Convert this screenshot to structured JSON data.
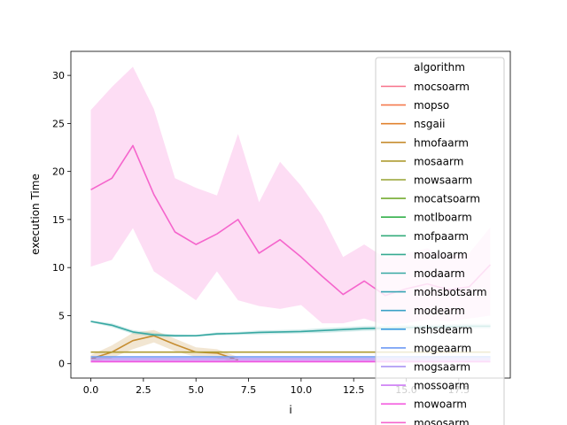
{
  "chart_data": {
    "type": "line",
    "title": "",
    "xlabel": "i",
    "ylabel": "execution Time",
    "xlim": [
      -0.95,
      19.95
    ],
    "ylim": [
      -1.5,
      32.5
    ],
    "x_ticks": [
      0.0,
      2.5,
      5.0,
      7.5,
      10.0,
      12.5,
      15.0,
      17.5
    ],
    "x_tick_labels": [
      "0.0",
      "2.5",
      "5.0",
      "7.5",
      "10.0",
      "12.5",
      "15.0",
      "17.5"
    ],
    "y_ticks": [
      0,
      5,
      10,
      15,
      20,
      25,
      30
    ],
    "y_tick_labels": [
      "0",
      "5",
      "10",
      "15",
      "20",
      "25",
      "30"
    ],
    "grid": false,
    "legend_title": "algorithm",
    "legend_position": "top-right",
    "x": [
      0,
      1,
      2,
      3,
      4,
      5,
      6,
      7,
      8,
      9,
      10,
      11,
      12,
      13,
      14,
      15,
      16,
      17,
      18,
      19
    ],
    "series": [
      {
        "name": "mocsoarm",
        "color": "#f77189",
        "values": [
          null,
          null,
          null,
          null,
          null,
          null,
          null,
          null,
          null,
          null,
          null,
          null,
          null,
          null,
          null,
          null,
          null,
          null,
          null,
          null
        ]
      },
      {
        "name": "mopso",
        "color": "#f57a4e",
        "values": [
          null,
          null,
          null,
          null,
          null,
          null,
          null,
          null,
          null,
          null,
          null,
          null,
          null,
          null,
          null,
          null,
          null,
          null,
          null,
          null
        ]
      },
      {
        "name": "nsgaii",
        "color": "#e1822f",
        "values": [
          null,
          null,
          null,
          null,
          null,
          null,
          null,
          null,
          null,
          null,
          null,
          null,
          null,
          null,
          null,
          null,
          null,
          null,
          null,
          null
        ]
      },
      {
        "name": "hmofaarm",
        "color": "#c68d31",
        "values": [
          0.5,
          1.2,
          2.4,
          2.9,
          2.0,
          1.2,
          1.1,
          0.4,
          null,
          null,
          null,
          null,
          null,
          null,
          null,
          null,
          null,
          null,
          null,
          null
        ],
        "band_low": [
          0.2,
          0.6,
          1.5,
          2.2,
          1.3,
          0.7,
          0.6,
          0.1,
          null,
          null,
          null,
          null,
          null,
          null,
          null,
          null,
          null,
          null,
          null,
          null
        ],
        "band_high": [
          0.9,
          1.9,
          3.2,
          3.5,
          2.6,
          1.7,
          1.5,
          0.7,
          null,
          null,
          null,
          null,
          null,
          null,
          null,
          null,
          null,
          null,
          null,
          null
        ]
      },
      {
        "name": "mosaarm",
        "color": "#ae9b31",
        "values": [
          1.2,
          1.2,
          1.2,
          1.2,
          1.2,
          1.2,
          1.2,
          1.2,
          1.2,
          1.2,
          1.2,
          1.2,
          1.2,
          1.2,
          1.2,
          1.2,
          1.2,
          1.2,
          1.2,
          1.2
        ]
      },
      {
        "name": "mowsaarm",
        "color": "#96a331",
        "values": [
          null,
          null,
          null,
          null,
          null,
          null,
          null,
          null,
          null,
          null,
          null,
          null,
          null,
          null,
          null,
          null,
          null,
          null,
          null,
          null
        ]
      },
      {
        "name": "mocatsoarm",
        "color": "#74ac31",
        "values": [
          null,
          null,
          null,
          null,
          null,
          null,
          null,
          null,
          null,
          null,
          null,
          null,
          null,
          null,
          null,
          null,
          null,
          null,
          null,
          null
        ]
      },
      {
        "name": "motlboarm",
        "color": "#33b04a",
        "values": [
          null,
          null,
          null,
          null,
          null,
          null,
          null,
          null,
          null,
          null,
          null,
          null,
          null,
          null,
          null,
          null,
          null,
          null,
          null,
          null
        ]
      },
      {
        "name": "mofpaarm",
        "color": "#35ad7c",
        "values": [
          null,
          null,
          null,
          null,
          null,
          null,
          null,
          null,
          null,
          null,
          null,
          null,
          null,
          null,
          null,
          null,
          null,
          null,
          null,
          null
        ]
      },
      {
        "name": "moaloarm",
        "color": "#36aa91",
        "values": [
          null,
          null,
          null,
          null,
          null,
          null,
          null,
          null,
          null,
          null,
          null,
          null,
          null,
          null,
          null,
          null,
          null,
          null,
          null,
          null
        ]
      },
      {
        "name": "modaarm",
        "color": "#37a8a2",
        "values": [
          4.4,
          4.0,
          3.3,
          3.0,
          2.9,
          2.9,
          3.1,
          3.15,
          3.25,
          3.3,
          3.35,
          3.45,
          3.55,
          3.65,
          3.7,
          3.75,
          3.8,
          3.85,
          3.9,
          3.9
        ],
        "band_low": [
          4.3,
          3.8,
          3.1,
          2.8,
          2.75,
          2.8,
          2.95,
          3.0,
          3.05,
          3.1,
          3.15,
          3.2,
          3.3,
          3.4,
          3.45,
          3.5,
          3.55,
          3.6,
          3.65,
          3.65
        ],
        "band_high": [
          4.5,
          4.2,
          3.5,
          3.2,
          3.05,
          3.0,
          3.25,
          3.3,
          3.45,
          3.5,
          3.55,
          3.7,
          3.8,
          3.9,
          3.95,
          4.0,
          4.05,
          4.1,
          4.15,
          4.15
        ]
      },
      {
        "name": "mohsbotsarm",
        "color": "#38a5b4",
        "values": [
          null,
          null,
          null,
          null,
          null,
          null,
          null,
          null,
          null,
          null,
          null,
          null,
          null,
          null,
          null,
          null,
          null,
          null,
          null,
          null
        ]
      },
      {
        "name": "modearm",
        "color": "#39a1c6",
        "values": [
          null,
          null,
          null,
          null,
          null,
          null,
          null,
          null,
          null,
          null,
          null,
          null,
          null,
          null,
          null,
          null,
          null,
          null,
          null,
          null
        ]
      },
      {
        "name": "nshsdearm",
        "color": "#3b9de0",
        "values": [
          null,
          null,
          null,
          null,
          null,
          null,
          null,
          null,
          null,
          null,
          null,
          null,
          null,
          null,
          null,
          null,
          null,
          null,
          null,
          null
        ]
      },
      {
        "name": "mogeaarm",
        "color": "#6e9af4",
        "values": [
          0.7,
          0.7,
          0.7,
          0.7,
          0.7,
          0.7,
          0.7,
          0.7,
          0.7,
          0.7,
          0.7,
          0.7,
          0.7,
          0.7,
          0.7,
          0.7,
          0.7,
          0.7,
          0.7,
          0.7
        ]
      },
      {
        "name": "mogsaarm",
        "color": "#a48cf4",
        "values": [
          0.5,
          0.5,
          0.5,
          0.5,
          0.5,
          0.5,
          0.5,
          0.5,
          0.5,
          0.5,
          0.5,
          0.5,
          0.5,
          0.5,
          0.5,
          0.5,
          0.5,
          0.5,
          0.5,
          0.5
        ]
      },
      {
        "name": "mossoarm",
        "color": "#cc7af4",
        "values": [
          0.3,
          0.3,
          0.3,
          0.3,
          0.3,
          0.3,
          0.3,
          0.3,
          0.3,
          0.3,
          0.3,
          0.3,
          0.3,
          0.3,
          0.3,
          0.3,
          0.3,
          0.3,
          0.3,
          0.3
        ]
      },
      {
        "name": "mowoarm",
        "color": "#f45fe0",
        "values": [
          0.2,
          0.2,
          0.2,
          0.2,
          0.2,
          0.2,
          0.2,
          0.2,
          0.2,
          0.2,
          0.2,
          0.2,
          0.2,
          0.2,
          0.2,
          0.2,
          0.2,
          0.2,
          0.2,
          0.2
        ]
      },
      {
        "name": "mososarm",
        "color": "#f565cc",
        "values": [
          18.1,
          19.3,
          22.7,
          17.6,
          13.7,
          12.4,
          13.5,
          15.0,
          11.5,
          12.9,
          11.1,
          9.1,
          7.2,
          8.6,
          7.1,
          7.8,
          8.3,
          7.7,
          8.0,
          10.3
        ],
        "band_low": [
          10.1,
          10.8,
          14.1,
          9.6,
          8.1,
          6.6,
          9.6,
          6.6,
          6.0,
          5.7,
          6.1,
          4.2,
          4.2,
          4.7,
          4.0,
          4.2,
          4.6,
          4.4,
          4.7,
          5.0
        ],
        "band_high": [
          26.4,
          28.8,
          30.9,
          26.5,
          19.3,
          18.3,
          17.5,
          23.9,
          16.8,
          21.0,
          18.5,
          15.4,
          11.1,
          12.4,
          11.0,
          11.5,
          12.0,
          11.2,
          11.5,
          14.2
        ]
      }
    ]
  }
}
